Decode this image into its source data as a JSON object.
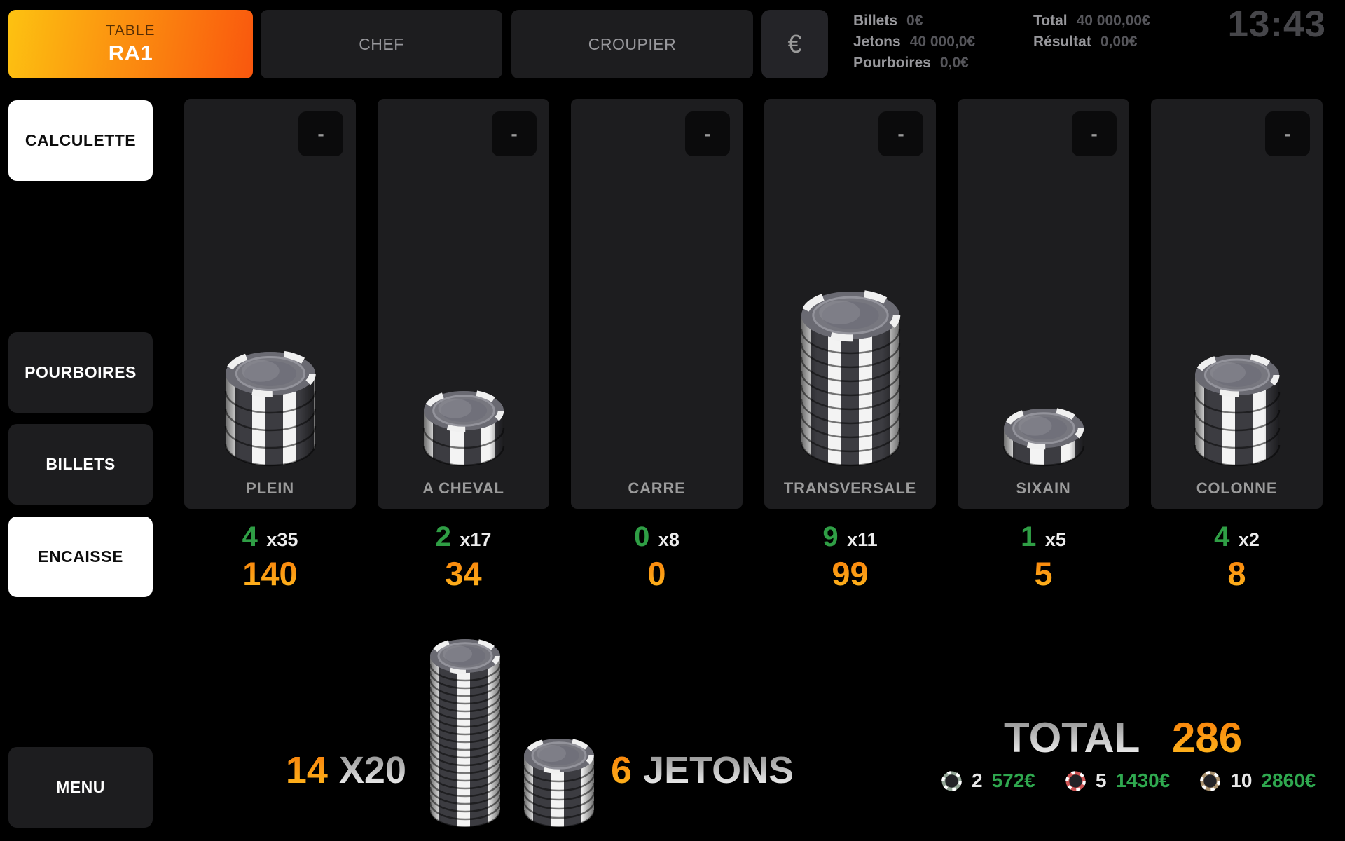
{
  "header": {
    "table_button": {
      "label_top": "TABLE",
      "label_main": "RA1"
    },
    "tabs": [
      {
        "label": "CHEF"
      },
      {
        "label": "CROUPIER"
      }
    ],
    "currency_button": "€",
    "stats_left": [
      {
        "label": "Billets",
        "value": "0€"
      },
      {
        "label": "Jetons",
        "value": "40 000,0€"
      },
      {
        "label": "Pourboires",
        "value": "0,0€"
      }
    ],
    "stats_right": [
      {
        "label": "Total",
        "value": "40 000,00€"
      },
      {
        "label": "Résultat",
        "value": "0,00€"
      }
    ],
    "clock": "13:43"
  },
  "sidebar": {
    "calculette": "CALCULETTE",
    "pourboires": "POURBOIRES",
    "billets": "BILLETS",
    "encaisse": "ENCAISSE",
    "menu": "MENU"
  },
  "ui": {
    "minus_label": "-"
  },
  "columns": [
    {
      "label": "PLEIN",
      "count": "4",
      "multiplier": "x35",
      "value": "140",
      "chips": 4
    },
    {
      "label": "A CHEVAL",
      "count": "2",
      "multiplier": "x17",
      "value": "34",
      "chips": 2
    },
    {
      "label": "CARRE",
      "count": "0",
      "multiplier": "x8",
      "value": "0",
      "chips": 0
    },
    {
      "label": "TRANSVERSALE",
      "count": "9",
      "multiplier": "x11",
      "value": "99",
      "chips": 9
    },
    {
      "label": "SIXAIN",
      "count": "1",
      "multiplier": "x5",
      "value": "5",
      "chips": 1
    },
    {
      "label": "COLONNE",
      "count": "4",
      "multiplier": "x2",
      "value": "8",
      "chips": 4
    }
  ],
  "summary": {
    "stacks_count": "14",
    "stacks_label": "X20",
    "stack_chips": 20,
    "loose_count": "6",
    "loose_label": "JETONS",
    "loose_chips": 6,
    "total_label": "TOTAL",
    "total_value": "286",
    "legend": [
      {
        "chip_color": "#93a596",
        "count": "2",
        "amount": "572€"
      },
      {
        "chip_color": "#cf5454",
        "count": "5",
        "amount": "1430€"
      },
      {
        "chip_color": "#a8916f",
        "count": "10",
        "amount": "2860€"
      }
    ]
  },
  "colors": {
    "background": "#000000",
    "panel": "#1d1d1f",
    "accent_orange_top": "#f8820b",
    "accent_orange_bottom": "#ffb81e",
    "table_gradient_start": "#fdc211",
    "table_gradient_end": "#f9570e",
    "green": "#2f9e45",
    "legend_green": "#2fa84f",
    "muted_text": "#9b9b9b",
    "dim_value_text": "#56565b",
    "clock_text": "#46464a"
  }
}
